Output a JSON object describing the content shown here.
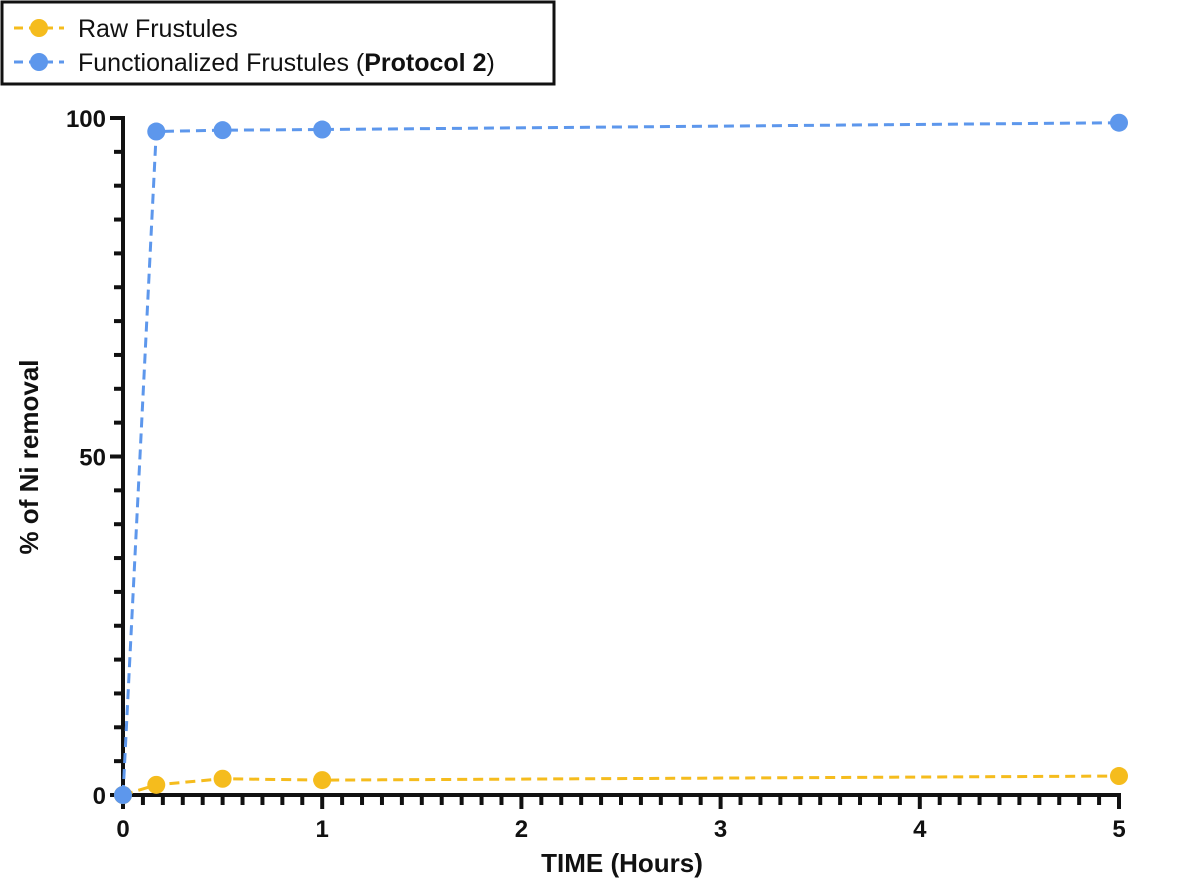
{
  "chart_data": {
    "type": "line",
    "xlabel": "TIME (Hours)",
    "ylabel": "% of Ni removal",
    "xlim": [
      0,
      5
    ],
    "ylim": [
      0,
      100
    ],
    "x_ticks": [
      "0",
      "1",
      "2",
      "3",
      "4",
      "5"
    ],
    "y_ticks": [
      "0",
      "50",
      "100"
    ],
    "x_minor_step": 0.1,
    "y_minor_step": 5,
    "grid": false,
    "legend_position": "top-left",
    "x": [
      0,
      0.167,
      0.5,
      1,
      5
    ],
    "series": [
      {
        "name": "Raw Frustules",
        "color": "#F5BC1D",
        "line_style": "dashed",
        "marker": "circle",
        "values": [
          0,
          1.5,
          2.4,
          2.2,
          2.8
        ]
      },
      {
        "name": "Functionalized Frustules (",
        "name_bold": "Protocol 2",
        "name_suffix": ")",
        "color": "#5D97EC",
        "line_style": "dashed",
        "marker": "circle",
        "values": [
          0,
          98.0,
          98.2,
          98.3,
          99.3
        ]
      }
    ]
  }
}
